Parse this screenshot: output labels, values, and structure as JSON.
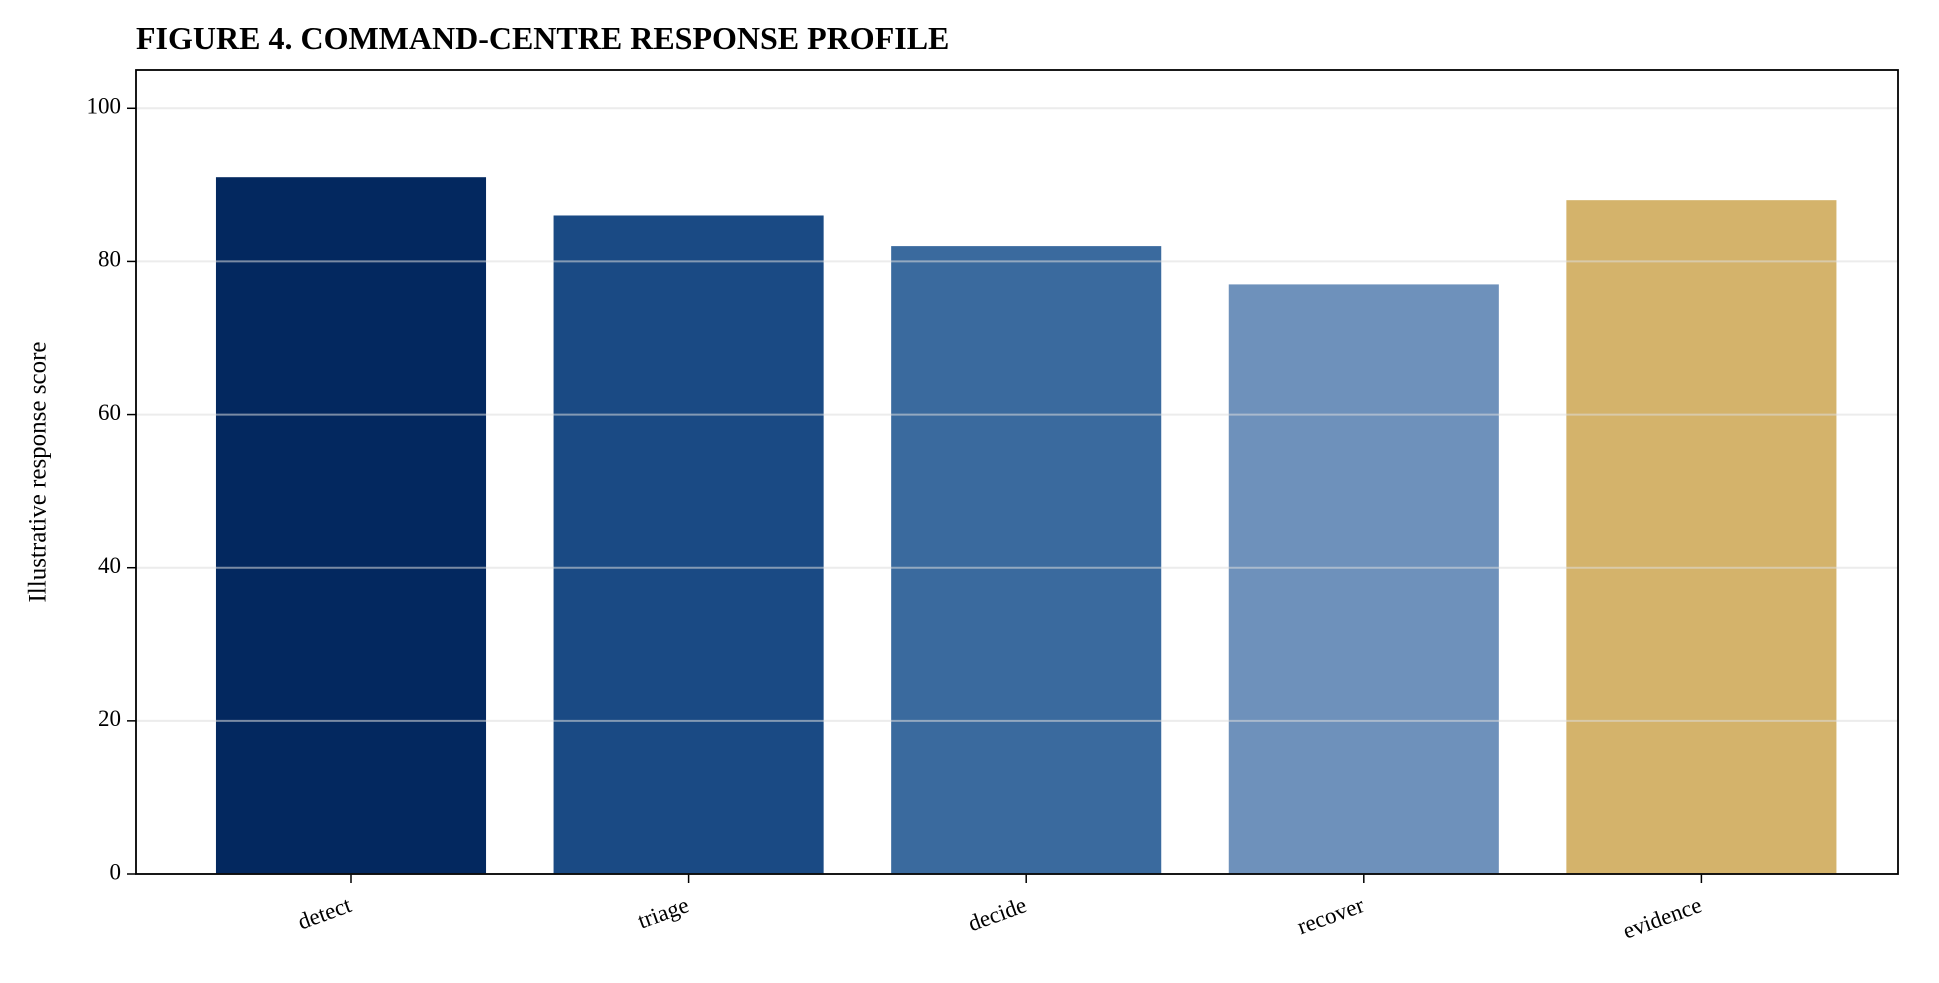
{
  "chart_data": {
    "type": "bar",
    "title": "FIGURE 4. COMMAND-CENTRE RESPONSE PROFILE",
    "ylabel": "Illustrative response score",
    "categories": [
      "detect",
      "triage",
      "decide",
      "recover",
      "evidence"
    ],
    "values": [
      91,
      86,
      82,
      77,
      88
    ],
    "colors": [
      "#03285f",
      "#1a4a84",
      "#3a6a9e",
      "#6e91bb",
      "#d4b36b"
    ],
    "ylim": [
      0,
      105
    ],
    "yticks": [
      0,
      20,
      40,
      60,
      80,
      100
    ],
    "grid": true
  }
}
